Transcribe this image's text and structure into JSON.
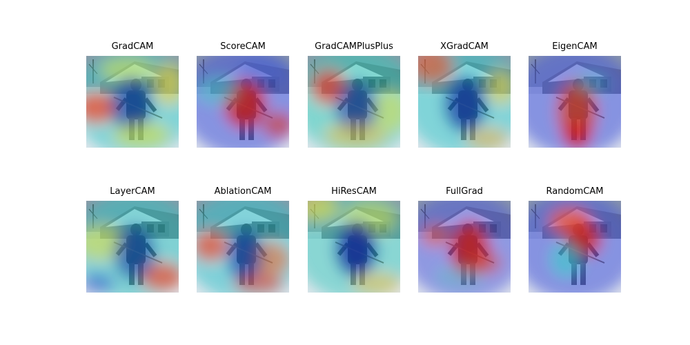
{
  "panels": [
    {
      "title": "GradCAM"
    },
    {
      "title": "ScoreCAM"
    },
    {
      "title": "GradCAMPlusPlus"
    },
    {
      "title": "XGradCAM"
    },
    {
      "title": "EigenCAM"
    },
    {
      "title": "LayerCAM"
    },
    {
      "title": "AblationCAM"
    },
    {
      "title": "HiResCAM"
    },
    {
      "title": "FullGrad"
    },
    {
      "title": "RandomCAM"
    }
  ]
}
